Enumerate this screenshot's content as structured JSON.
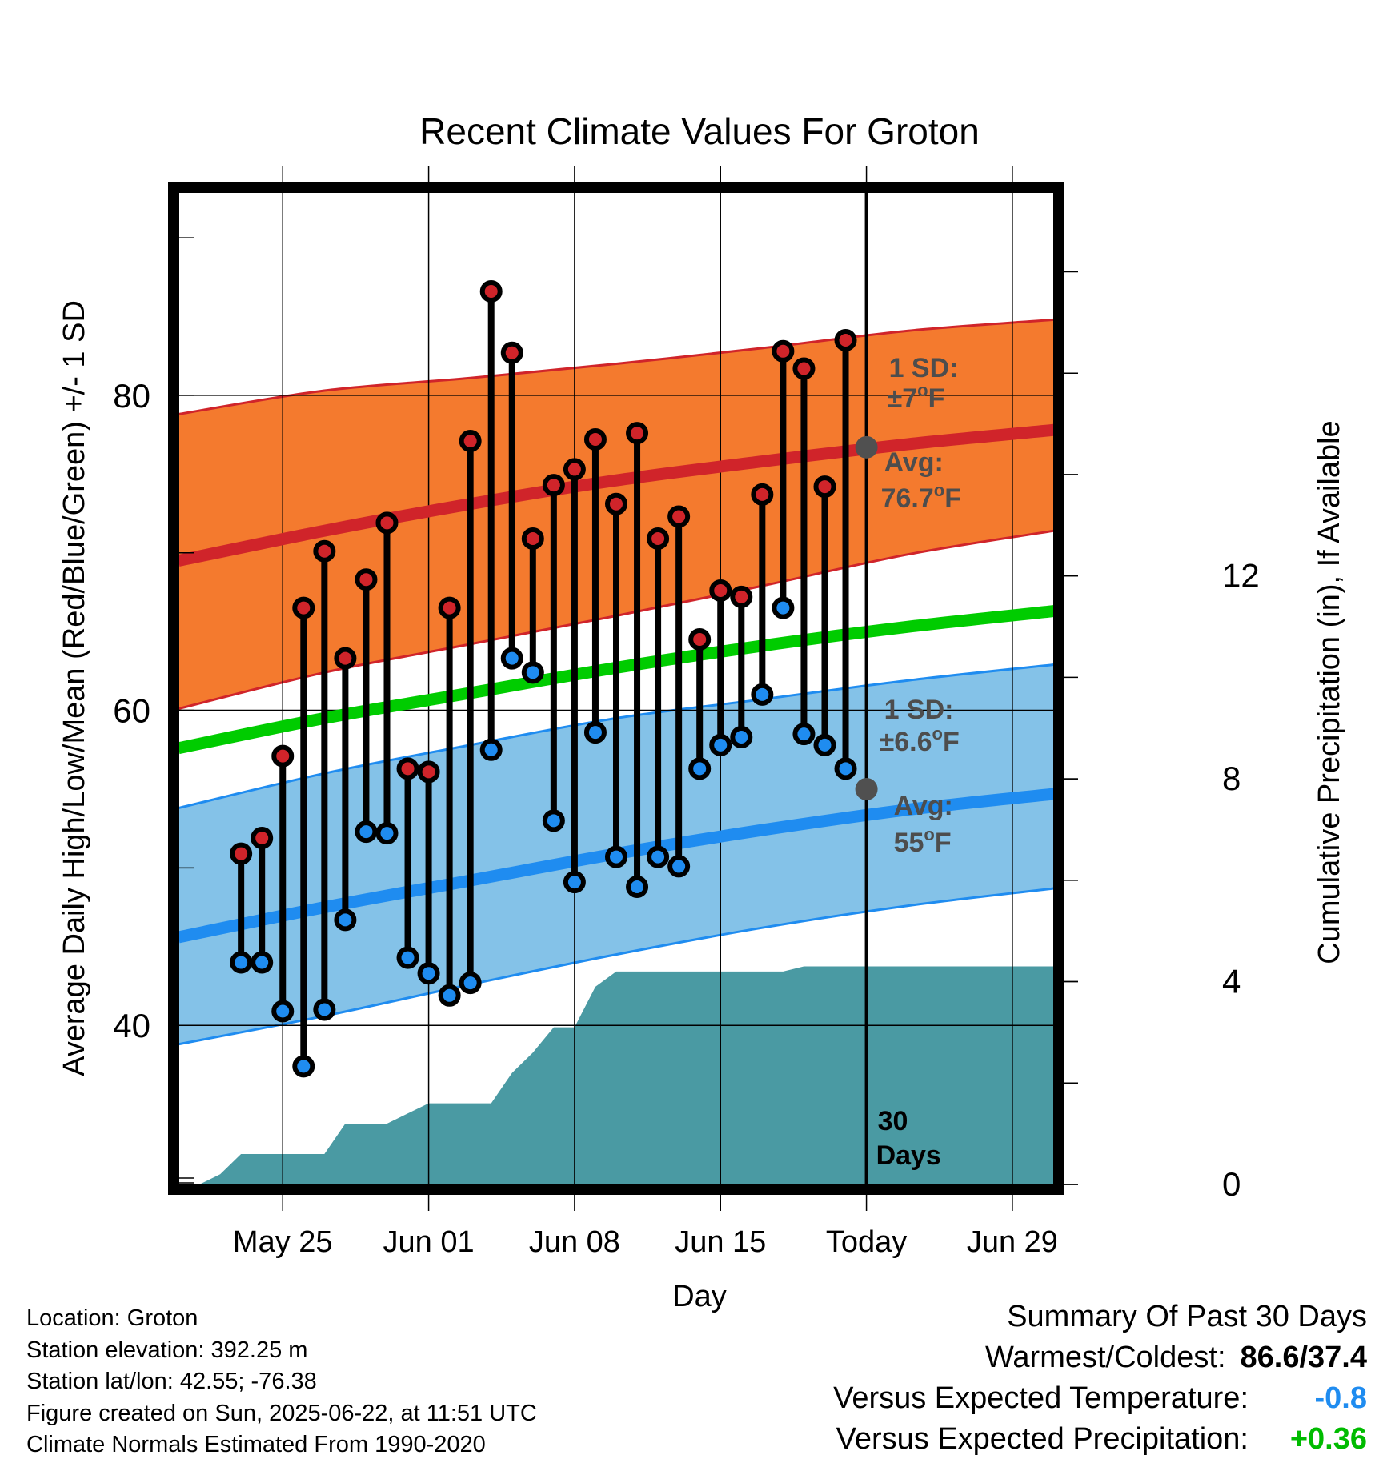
{
  "chart_data": {
    "type": "line",
    "title": "Recent Climate Values For Groton",
    "xlabel": "Day",
    "ylabel": "Average Daily High/Low/Mean (Red/Blue/Green) +/- 1 SD",
    "y2label": "Cumulative Precipitation (in), If Available",
    "ylim": [
      29.9,
      92.9
    ],
    "y_ticks": [
      "40",
      "60",
      "80"
    ],
    "y2lim": [
      0,
      19.57
    ],
    "y2_ticks": [
      "0",
      "4",
      "8",
      "12"
    ],
    "xlim": [
      "2025-05-20",
      "2025-07-01"
    ],
    "x_ticks": [
      {
        "date": "2025-05-25",
        "label": "May 25"
      },
      {
        "date": "2025-06-01",
        "label": "Jun 01"
      },
      {
        "date": "2025-06-08",
        "label": "Jun 08"
      },
      {
        "date": "2025-06-15",
        "label": "Jun 15"
      },
      {
        "date": "2025-06-22",
        "label": "Today"
      },
      {
        "date": "2025-06-29",
        "label": "Jun 29"
      }
    ],
    "grid": true,
    "daily": {
      "dates": [
        "2025-05-23",
        "2025-05-24",
        "2025-05-25",
        "2025-05-26",
        "2025-05-27",
        "2025-05-28",
        "2025-05-29",
        "2025-05-30",
        "2025-05-31",
        "2025-06-01",
        "2025-06-02",
        "2025-06-03",
        "2025-06-04",
        "2025-06-05",
        "2025-06-06",
        "2025-06-07",
        "2025-06-08",
        "2025-06-09",
        "2025-06-10",
        "2025-06-11",
        "2025-06-12",
        "2025-06-13",
        "2025-06-14",
        "2025-06-15",
        "2025-06-16",
        "2025-06-17",
        "2025-06-18",
        "2025-06-19",
        "2025-06-20",
        "2025-06-21"
      ],
      "highs": [
        50.9,
        51.9,
        57.1,
        66.5,
        70.1,
        63.3,
        68.3,
        71.9,
        56.3,
        56.1,
        66.5,
        77.1,
        86.6,
        82.7,
        70.9,
        74.3,
        75.3,
        77.2,
        73.1,
        77.6,
        70.9,
        72.3,
        64.5,
        67.6,
        67.2,
        73.7,
        82.8,
        81.7,
        74.2,
        83.5
      ],
      "lows": [
        44.0,
        44.0,
        40.9,
        37.4,
        41.0,
        46.7,
        52.3,
        52.2,
        44.3,
        43.3,
        41.9,
        42.7,
        57.5,
        63.3,
        62.4,
        53.0,
        49.1,
        58.6,
        50.7,
        48.8,
        50.7,
        50.1,
        56.3,
        57.8,
        58.3,
        61.0,
        66.5,
        58.5,
        57.8,
        56.3
      ]
    },
    "normals": {
      "dates": [
        "2025-05-20",
        "2025-05-27",
        "2025-06-03",
        "2025-06-10",
        "2025-06-17",
        "2025-06-24",
        "2025-07-01"
      ],
      "high_mean": [
        69.5,
        71.4,
        73.1,
        74.6,
        75.8,
        76.9,
        77.8
      ],
      "high_sd_upper": [
        78.8,
        80.3,
        81.1,
        82.0,
        83.0,
        84.1,
        84.8
      ],
      "high_sd_lower": [
        60.1,
        62.4,
        64.2,
        66.0,
        67.9,
        69.9,
        71.4
      ],
      "low_mean": [
        45.6,
        47.5,
        49.2,
        50.9,
        52.4,
        53.7,
        54.7
      ],
      "low_sd_upper": [
        53.8,
        56.0,
        57.8,
        59.5,
        60.7,
        61.9,
        62.9
      ],
      "low_sd_lower": [
        38.8,
        40.6,
        42.6,
        44.5,
        46.2,
        47.6,
        48.7
      ],
      "daily_mean": [
        57.6,
        59.5,
        61.1,
        62.7,
        64.1,
        65.3,
        66.3
      ]
    },
    "precip": {
      "dates": [
        "2025-05-20",
        "2025-05-21",
        "2025-05-22",
        "2025-05-23",
        "2025-05-24",
        "2025-05-25",
        "2025-05-26",
        "2025-05-27",
        "2025-05-28",
        "2025-05-29",
        "2025-05-30",
        "2025-05-31",
        "2025-06-01",
        "2025-06-02",
        "2025-06-03",
        "2025-06-04",
        "2025-06-05",
        "2025-06-06",
        "2025-06-07",
        "2025-06-08",
        "2025-06-09",
        "2025-06-10",
        "2025-06-11",
        "2025-06-12",
        "2025-06-13",
        "2025-06-14",
        "2025-06-15",
        "2025-06-16",
        "2025-06-17",
        "2025-06-18",
        "2025-06-19",
        "2025-06-20",
        "2025-06-21",
        "2025-06-22",
        "2025-07-01"
      ],
      "values": [
        0.0,
        0.0,
        0.2,
        0.6,
        0.6,
        0.6,
        0.6,
        0.6,
        1.2,
        1.2,
        1.2,
        1.4,
        1.6,
        1.6,
        1.6,
        1.6,
        2.2,
        2.6,
        3.1,
        3.1,
        3.9,
        4.2,
        4.2,
        4.2,
        4.2,
        4.2,
        4.2,
        4.2,
        4.2,
        4.2,
        4.3,
        4.3,
        4.3,
        4.3,
        4.3
      ]
    },
    "annotations": {
      "high_sd_title": "1 SD:",
      "high_sd_value": "±7",
      "high_avg_title": "Avg:",
      "high_avg_value": "76.7",
      "low_sd_title": "1 SD:",
      "low_sd_value": "±6.6",
      "low_avg_title": "Avg:",
      "low_avg_value": "55",
      "degree_symbol": "o",
      "unit": "F",
      "high_avg_point": 76.7,
      "low_avg_point": 55.0,
      "period_line1": "30",
      "period_line2": "Days"
    },
    "colors": {
      "high_band": "#f47a2e",
      "high_line": "#d0242a",
      "low_band": "#84c2e8",
      "low_line": "#1f8cf0",
      "mean_line": "#00cc00",
      "precip": "#4a9aa3",
      "high_marker": "#d0242a",
      "low_marker": "#1f8cf0",
      "annotation_text": "#4d4d4d"
    }
  },
  "info": {
    "location": "Location: Groton",
    "elevation": "Station elevation: 392.25 m",
    "latlon": "Station lat/lon: 42.55; -76.38",
    "created": "Figure created on Sun, 2025-06-22, at 11:51 UTC",
    "normals": "Climate Normals Estimated From 1990-2020"
  },
  "summary": {
    "title": "Summary Of Past 30 Days",
    "warmest_label": "Warmest/Coldest:",
    "warmest_value": "86.6/37.4",
    "temp_label": "Versus Expected Temperature:",
    "temp_value": "-0.8",
    "temp_color": "#1f8cf0",
    "precip_label": "Versus Expected Precipitation:",
    "precip_value": "+0.36",
    "precip_color": "#00bb00"
  }
}
